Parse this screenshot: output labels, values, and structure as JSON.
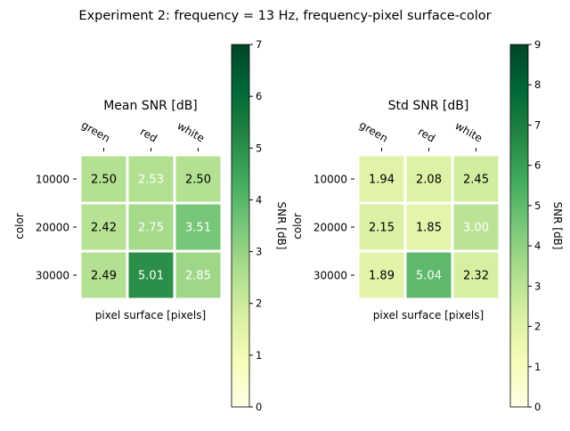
{
  "suptitle": "Experiment 2: frequency = 13 Hz, frequency-pixel surface-color",
  "colors": {
    "cmap": "YlGn",
    "cell_border": "#ffffff",
    "text_dark": "#000000",
    "text_light": "#ffffff"
  },
  "chart_data": [
    {
      "type": "heatmap",
      "title": "Mean SNR [dB]",
      "xlabel": "pixel surface [pixels]",
      "ylabel": "color",
      "x_categories": [
        "green",
        "red",
        "white"
      ],
      "y_categories": [
        "10000",
        "20000",
        "30000"
      ],
      "values": [
        [
          2.5,
          2.53,
          2.5
        ],
        [
          2.42,
          2.75,
          3.51
        ],
        [
          2.49,
          5.01,
          2.85
        ]
      ],
      "value_labels": [
        [
          "2.50",
          "2.53",
          "2.50"
        ],
        [
          "2.42",
          "2.75",
          "3.51"
        ],
        [
          "2.49",
          "5.01",
          "2.85"
        ]
      ],
      "label_colors": [
        [
          "dark",
          "light",
          "dark"
        ],
        [
          "dark",
          "light",
          "light"
        ],
        [
          "dark",
          "light",
          "light"
        ]
      ],
      "colorbar": {
        "label": "SNR [dB]",
        "vmin": 0,
        "vmax": 7,
        "ticks": [
          "0",
          "1",
          "2",
          "3",
          "4",
          "5",
          "6",
          "7"
        ]
      }
    },
    {
      "type": "heatmap",
      "title": "Std SNR [dB]",
      "xlabel": "pixel surface [pixels]",
      "ylabel": "color",
      "x_categories": [
        "green",
        "red",
        "white"
      ],
      "y_categories": [
        "10000",
        "20000",
        "30000"
      ],
      "values": [
        [
          1.94,
          2.08,
          2.45
        ],
        [
          2.15,
          1.85,
          3.0
        ],
        [
          1.89,
          5.04,
          2.32
        ]
      ],
      "value_labels": [
        [
          "1.94",
          "2.08",
          "2.45"
        ],
        [
          "2.15",
          "1.85",
          "3.00"
        ],
        [
          "1.89",
          "5.04",
          "2.32"
        ]
      ],
      "label_colors": [
        [
          "dark",
          "dark",
          "dark"
        ],
        [
          "dark",
          "dark",
          "light"
        ],
        [
          "dark",
          "light",
          "dark"
        ]
      ],
      "colorbar": {
        "label": "SNR [dB]",
        "vmin": 0,
        "vmax": 9,
        "ticks": [
          "0",
          "1",
          "2",
          "3",
          "4",
          "5",
          "6",
          "7",
          "8",
          "9"
        ]
      }
    }
  ]
}
